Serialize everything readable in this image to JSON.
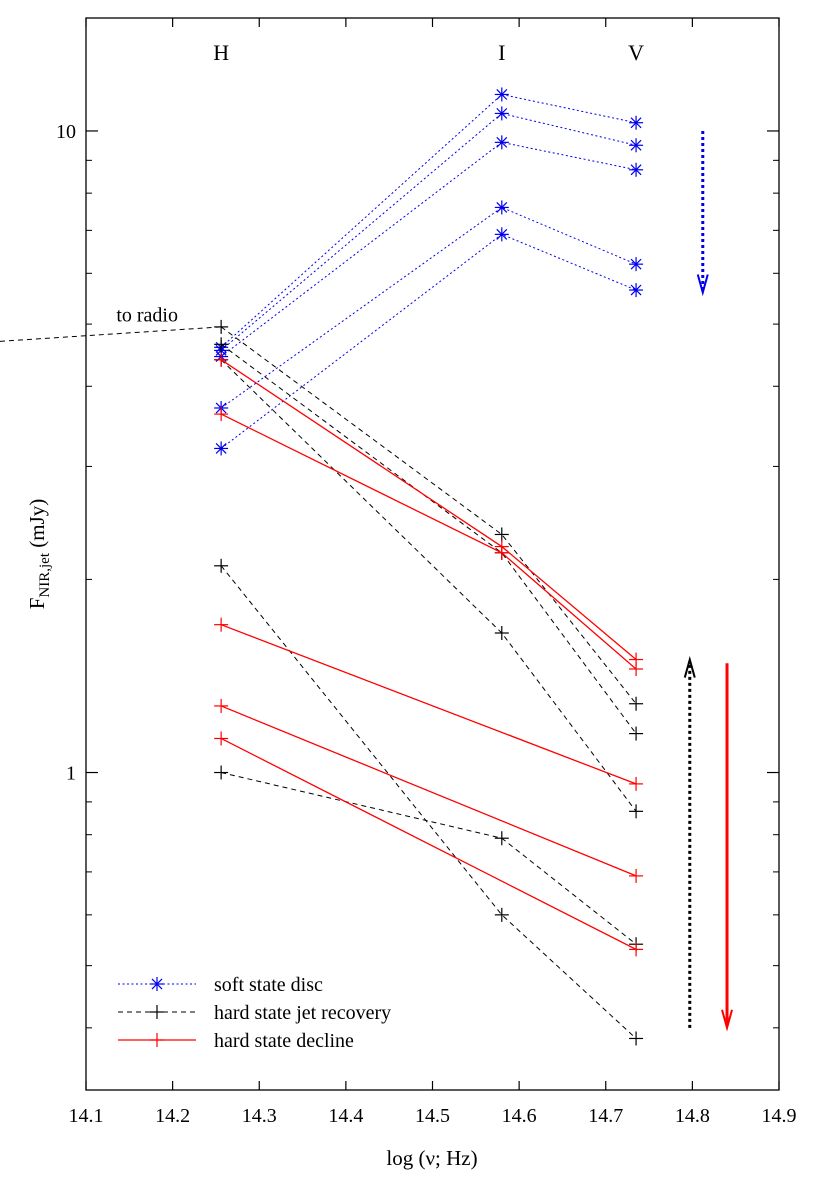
{
  "chart_data": {
    "type": "line",
    "xlabel": "log (ν; Hz)",
    "ylabel": {
      "main": "F",
      "sub": "NIR,jet",
      "unit": " (mJy)"
    },
    "xlim": [
      14.1,
      14.9
    ],
    "ylim": [
      0.32,
      15.0
    ],
    "yscale": "log",
    "grid": false,
    "legend_position": "bottom-left",
    "x_ticks": [
      "14.1",
      "14.2",
      "14.3",
      "14.4",
      "14.5",
      "14.6",
      "14.7",
      "14.8",
      "14.9"
    ],
    "x_tick_values": [
      14.1,
      14.2,
      14.3,
      14.4,
      14.5,
      14.6,
      14.7,
      14.8,
      14.9
    ],
    "y_major_ticks": [
      {
        "value": 1,
        "label": "1"
      },
      {
        "value": 10,
        "label": "10"
      }
    ],
    "y_minor_ticks": [
      0.4,
      0.5,
      0.6,
      0.7,
      0.8,
      0.9,
      2,
      3,
      4,
      5,
      6,
      7,
      8,
      9
    ],
    "band_labels": [
      {
        "text": "H",
        "x": 14.256
      },
      {
        "text": "I",
        "x": 14.58
      },
      {
        "text": "V",
        "x": 14.735
      }
    ],
    "x": [
      14.256,
      14.58,
      14.735
    ],
    "series": [
      {
        "name": "soft state disc",
        "color": "#0000ee",
        "style": "dotted",
        "marker": "asterisk",
        "lines": [
          [
            4.6,
            11.4,
            10.3
          ],
          [
            4.55,
            10.65,
            9.5
          ],
          [
            4.45,
            9.6,
            8.7
          ],
          [
            3.7,
            7.6,
            6.2
          ],
          [
            3.2,
            6.9,
            5.65
          ]
        ]
      },
      {
        "name": "hard state jet recovery",
        "color": "#000000",
        "style": "dashed",
        "marker": "plus",
        "lines": [
          [
            4.95,
            2.35,
            1.28
          ],
          [
            4.65,
            2.2,
            1.15
          ],
          [
            4.4,
            1.65,
            0.87
          ],
          [
            2.1,
            0.6,
            0.385
          ],
          [
            1.0,
            0.79,
            0.54
          ]
        ]
      },
      {
        "name": "hard state decline",
        "color": "#ff0000",
        "style": "solid",
        "marker": "plus",
        "lines": [
          [
            4.4,
            2.25,
            1.5
          ],
          [
            3.62,
            2.2,
            1.45
          ],
          [
            1.7,
            null,
            0.96
          ],
          [
            1.27,
            null,
            0.69
          ],
          [
            1.13,
            null,
            0.53
          ]
        ]
      }
    ],
    "extension_line": {
      "from": [
        14.1,
        4.7
      ],
      "to": [
        14.256,
        4.95
      ],
      "color": "#000000",
      "style": "dashed"
    },
    "annotations": [
      {
        "text": "to radio",
        "x": 14.135,
        "y": 5.05
      }
    ],
    "arrows": [
      {
        "name": "blue-dotted-arrow",
        "color": "#0000ee",
        "style": "dotted",
        "x": 14.812,
        "y_from": 10.0,
        "y_to": 5.6
      },
      {
        "name": "black-dotted-arrow",
        "color": "#000000",
        "style": "dotted",
        "x": 14.797,
        "y_from": 0.4,
        "y_to": 1.5
      },
      {
        "name": "red-solid-arrow",
        "color": "#ff0000",
        "style": "solid",
        "x": 14.84,
        "y_from": 1.48,
        "y_to": 0.4
      }
    ]
  }
}
